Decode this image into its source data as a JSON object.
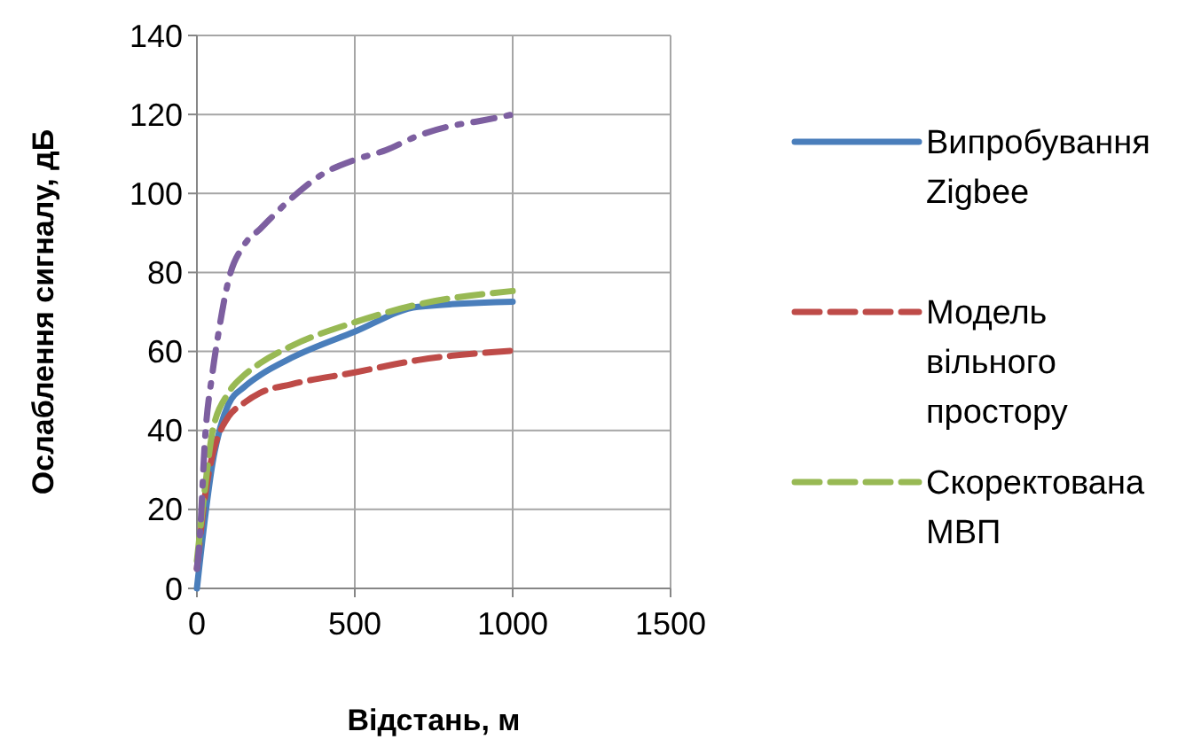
{
  "chart_data": {
    "type": "line",
    "xlabel": "Відстань, м",
    "ylabel": "Ослаблення сигналу, дБ",
    "xlim": [
      0,
      1500
    ],
    "xticks": [
      0,
      500,
      1000,
      1500
    ],
    "ylim": [
      0,
      140
    ],
    "yticks": [
      0,
      20,
      40,
      60,
      80,
      100,
      120,
      140
    ],
    "grid": true,
    "legend": "right",
    "marker": "none",
    "series": [
      {
        "name": "Випробування Zigbee",
        "color": "#4a7ebb",
        "line_style": "solid",
        "x": [
          0,
          25,
          50,
          75,
          100,
          150,
          200,
          300,
          500,
          700,
          1000
        ],
        "values": [
          0,
          17.5,
          32,
          41,
          46.6,
          51,
          54,
          58.4,
          65,
          71.3,
          72.6
        ]
      },
      {
        "name": "Модель вільного простору",
        "color": "#be4b48",
        "line_style": "dashed",
        "x": [
          0,
          25,
          50,
          75,
          100,
          150,
          200,
          300,
          500,
          700,
          1000
        ],
        "values": [
          5,
          23,
          34,
          40,
          43.5,
          47,
          49.5,
          51.7,
          54.7,
          57.8,
          60.2
        ]
      },
      {
        "name": "Скоректована МВП",
        "color": "#98b954",
        "line_style": "dashed",
        "x": [
          0,
          25,
          50,
          100,
          150,
          200,
          300,
          500,
          700,
          1000
        ],
        "values": [
          7,
          25,
          40,
          49.5,
          54,
          57,
          61.4,
          67.4,
          71.9,
          75.3
        ]
      },
      {
        "color": "#7d5fa0",
        "line_style": "dotted",
        "x": [
          0,
          10,
          25,
          50,
          67,
          100,
          150,
          200,
          300,
          400,
          500,
          600,
          700,
          800,
          900,
          1000
        ],
        "values": [
          5,
          14,
          37,
          55,
          64,
          78,
          87,
          91,
          98.8,
          105,
          108.5,
          111,
          114.6,
          117,
          118.4,
          120
        ]
      }
    ]
  }
}
